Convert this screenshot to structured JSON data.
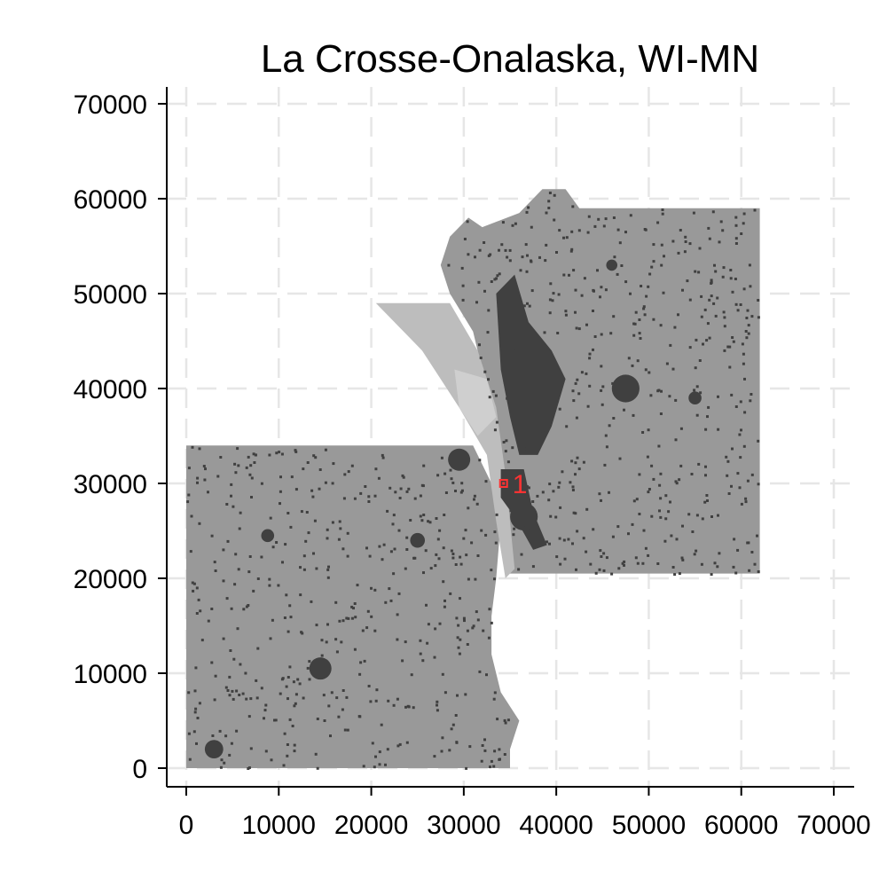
{
  "chart_data": {
    "type": "map",
    "title": "La Crosse-Onalaska, WI-MN",
    "xlim": [
      0,
      70000
    ],
    "ylim": [
      0,
      70000
    ],
    "x_ticks": [
      0,
      10000,
      20000,
      30000,
      40000,
      50000,
      60000,
      70000
    ],
    "y_ticks": [
      0,
      10000,
      20000,
      30000,
      40000,
      50000,
      60000,
      70000
    ],
    "x_tick_labels": [
      "0",
      "10000",
      "20000",
      "30000",
      "40000",
      "50000",
      "60000",
      "70000"
    ],
    "y_tick_labels": [
      "0",
      "10000",
      "20000",
      "30000",
      "40000",
      "50000",
      "60000",
      "70000"
    ],
    "grid": true,
    "colors": {
      "land": "#999999",
      "light_land": "#bdbdbd",
      "developed": "#404040",
      "marker": "#ff3333",
      "grid": "#e6e6e6"
    },
    "regions": {
      "minnesota_block": [
        [
          0,
          0
        ],
        [
          35000,
          0
        ],
        [
          35000,
          2000
        ],
        [
          36000,
          5000
        ],
        [
          34000,
          8000
        ],
        [
          33000,
          12000
        ],
        [
          33000,
          16000
        ],
        [
          33500,
          20000
        ],
        [
          34000,
          26000
        ],
        [
          33000,
          30000
        ],
        [
          31000,
          34000
        ],
        [
          0,
          34000
        ]
      ],
      "wisconsin_block": [
        [
          34500,
          20500
        ],
        [
          62000,
          20500
        ],
        [
          62000,
          59000
        ],
        [
          42500,
          59000
        ],
        [
          41000,
          61000
        ],
        [
          38500,
          61000
        ],
        [
          36000,
          58500
        ],
        [
          32000,
          57000
        ],
        [
          30500,
          58000
        ],
        [
          28500,
          56000
        ],
        [
          27500,
          53000
        ],
        [
          28500,
          50000
        ],
        [
          31000,
          46000
        ],
        [
          32500,
          40000
        ],
        [
          33500,
          34000
        ],
        [
          34500,
          28000
        ]
      ],
      "river_valley": [
        [
          20500,
          49000
        ],
        [
          28500,
          49000
        ],
        [
          31500,
          44000
        ],
        [
          33500,
          38000
        ],
        [
          34500,
          31000
        ],
        [
          35000,
          26000
        ],
        [
          35500,
          21000
        ],
        [
          34500,
          20000
        ],
        [
          33500,
          26000
        ],
        [
          32500,
          33000
        ],
        [
          29500,
          38000
        ],
        [
          25500,
          44000
        ]
      ],
      "light_pool": [
        [
          29000,
          42000
        ],
        [
          32500,
          41000
        ],
        [
          33500,
          37000
        ],
        [
          31500,
          35000
        ],
        [
          29500,
          38000
        ]
      ],
      "urban_core": [
        [
          34000,
          31500
        ],
        [
          36500,
          31500
        ],
        [
          37500,
          27000
        ],
        [
          39000,
          23500
        ],
        [
          37500,
          23000
        ],
        [
          35500,
          26500
        ],
        [
          34000,
          28500
        ]
      ],
      "developed_corridor": [
        [
          33500,
          50000
        ],
        [
          35500,
          52000
        ],
        [
          37000,
          47000
        ],
        [
          39500,
          44000
        ],
        [
          41000,
          41000
        ],
        [
          39500,
          36000
        ],
        [
          38000,
          33000
        ],
        [
          36000,
          33000
        ],
        [
          35000,
          37000
        ],
        [
          34000,
          42000
        ]
      ],
      "towns": [
        [
          14500,
          10500,
          1200
        ],
        [
          3000,
          2000,
          1000
        ],
        [
          8800,
          24500,
          700
        ],
        [
          25000,
          24000,
          800
        ],
        [
          29500,
          32500,
          1200
        ],
        [
          47500,
          40000,
          1500
        ],
        [
          55000,
          39000,
          700
        ],
        [
          46000,
          53000,
          600
        ],
        [
          36500,
          26500,
          1500
        ]
      ]
    },
    "markers": [
      {
        "x": 34300,
        "y": 30000,
        "label": "1"
      }
    ]
  }
}
